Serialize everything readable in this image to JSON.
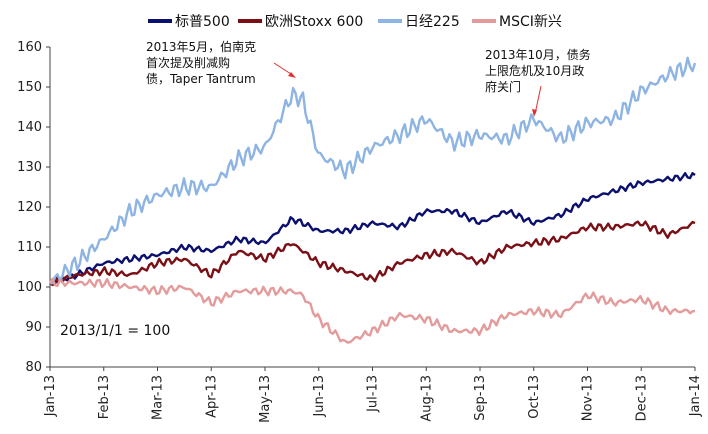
{
  "chart_data": {
    "type": "line",
    "title": "",
    "xlabel": "",
    "ylabel": "",
    "ylim": [
      80,
      160
    ],
    "yticks": [
      80,
      90,
      100,
      110,
      120,
      130,
      140,
      150,
      160
    ],
    "grid": false,
    "legend_position": "top",
    "x_tick_labels": [
      "Jan-13",
      "Feb-13",
      "Mar-13",
      "Apr-13",
      "May-13",
      "Jun-13",
      "Jul-13",
      "Aug-13",
      "Sep-13",
      "Oct-13",
      "Nov-13",
      "Dec-13",
      "Jan-14"
    ],
    "annotations": [
      {
        "lines": [
          "2013年5月，伯南克",
          "首次提及削减购",
          "债，Taper Tantrum"
        ],
        "points_to": "2013-05-22"
      },
      {
        "lines": [
          "2013年10月，债务",
          "上限危机及10月政",
          "府关门"
        ],
        "points_to": "2013-10-01"
      }
    ],
    "base_note": "2013/1/1 = 100",
    "x_month_index": [
      0,
      0.5,
      1,
      1.5,
      2,
      2.5,
      3,
      3.5,
      4,
      4.5,
      4.7,
      5,
      5.5,
      6,
      6.5,
      7,
      7.5,
      8,
      8.5,
      9,
      9.5,
      10,
      10.5,
      11,
      11.5,
      12
    ],
    "series": [
      {
        "name": "标普500",
        "color": "#0b0f6e",
        "values": [
          101,
          103,
          106,
          107,
          108,
          110,
          109,
          112,
          111,
          117,
          116,
          114,
          114,
          116,
          115,
          119,
          119,
          116,
          119,
          116,
          118,
          122,
          124,
          126,
          127,
          128
        ]
      },
      {
        "name": "欧洲Stoxx 600",
        "color": "#7a0f16",
        "values": [
          101,
          103,
          104,
          103,
          106,
          107,
          103,
          109,
          107,
          111,
          109,
          106,
          104,
          102,
          106,
          108,
          109,
          106,
          110,
          111,
          112,
          115,
          115,
          116,
          113,
          116
        ]
      },
      {
        "name": "日经225",
        "color": "#8eb4e3",
        "values": [
          101,
          106,
          112,
          119,
          123,
          125,
          125,
          132,
          135,
          148,
          147,
          133,
          129,
          135,
          138,
          142,
          136,
          138,
          137,
          142,
          137,
          141,
          142,
          149,
          153,
          156
        ]
      },
      {
        "name": "MSCI新兴",
        "color": "#e39b9b",
        "values": [
          101,
          101,
          101,
          100,
          99,
          100,
          96,
          99,
          99,
          99,
          98,
          92,
          86,
          89,
          93,
          92,
          89,
          89,
          93,
          94,
          93,
          98,
          96,
          97,
          94,
          94
        ]
      }
    ]
  }
}
